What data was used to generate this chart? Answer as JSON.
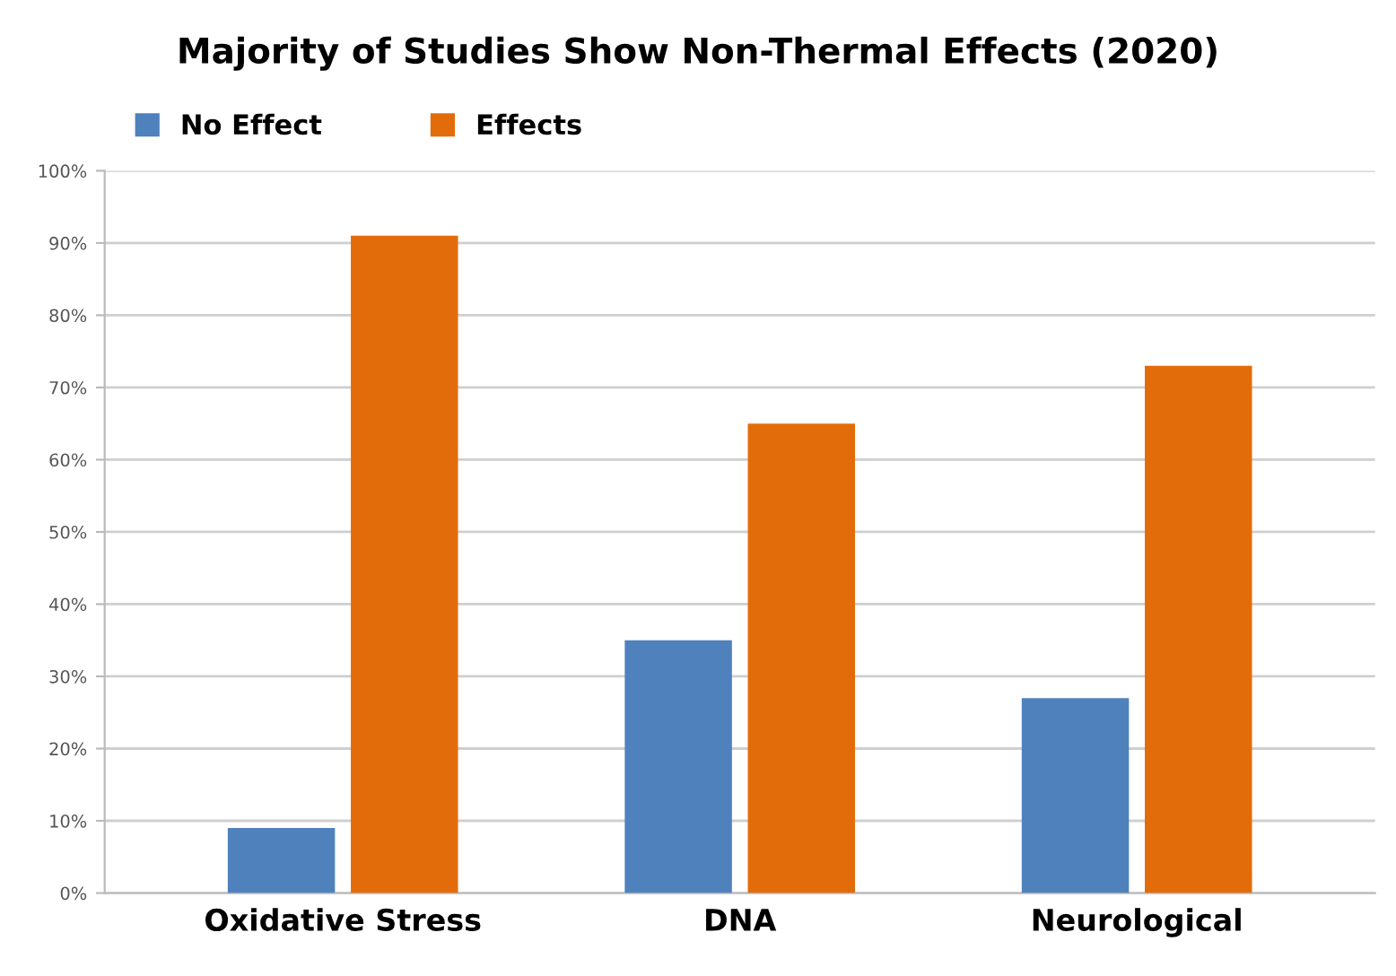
{
  "chart_data": {
    "type": "bar",
    "title": "Majority of Studies Show Non-Thermal Effects (2020)",
    "categories": [
      "Oxidative Stress",
      "DNA",
      "Neurological"
    ],
    "series": [
      {
        "name": "No Effect",
        "color": "#4f81bd",
        "values": [
          9,
          35,
          27
        ]
      },
      {
        "name": "Effects",
        "color": "#e36c0a",
        "values": [
          91,
          65,
          73
        ]
      }
    ],
    "ylim": [
      0,
      100
    ],
    "yticks": [
      {
        "value": 0,
        "label": "0%"
      },
      {
        "value": 10,
        "label": "10%"
      },
      {
        "value": 20,
        "label": "20%"
      },
      {
        "value": 30,
        "label": "30%"
      },
      {
        "value": 40,
        "label": "40%"
      },
      {
        "value": 50,
        "label": "50%"
      },
      {
        "value": 60,
        "label": "60%"
      },
      {
        "value": 70,
        "label": "70%"
      },
      {
        "value": 80,
        "label": "80%"
      },
      {
        "value": 90,
        "label": "90%"
      },
      {
        "value": 100,
        "label": "100%"
      }
    ],
    "grid": "y",
    "legend": "top left"
  }
}
